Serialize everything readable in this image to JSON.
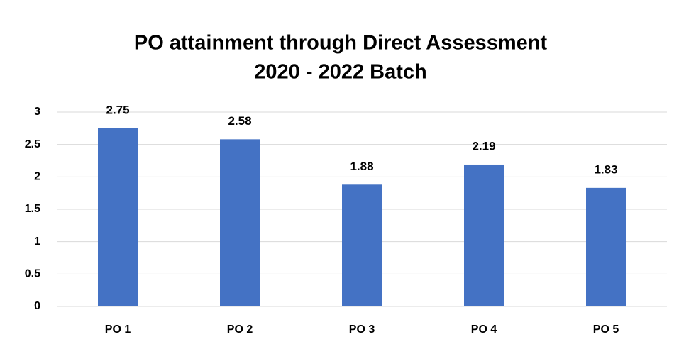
{
  "chart_data": {
    "type": "bar",
    "title": [
      "PO attainment through Direct Assessment",
      "2020 - 2022 Batch"
    ],
    "categories": [
      "PO 1",
      "PO 2",
      "PO 3",
      "PO 4",
      "PO 5"
    ],
    "values": [
      2.75,
      2.58,
      1.88,
      2.19,
      1.83
    ],
    "color": "#4472c4",
    "ylim": [
      0,
      3
    ],
    "yticks": [
      0,
      0.5,
      1,
      1.5,
      2,
      2.5,
      3
    ],
    "grid": true
  }
}
